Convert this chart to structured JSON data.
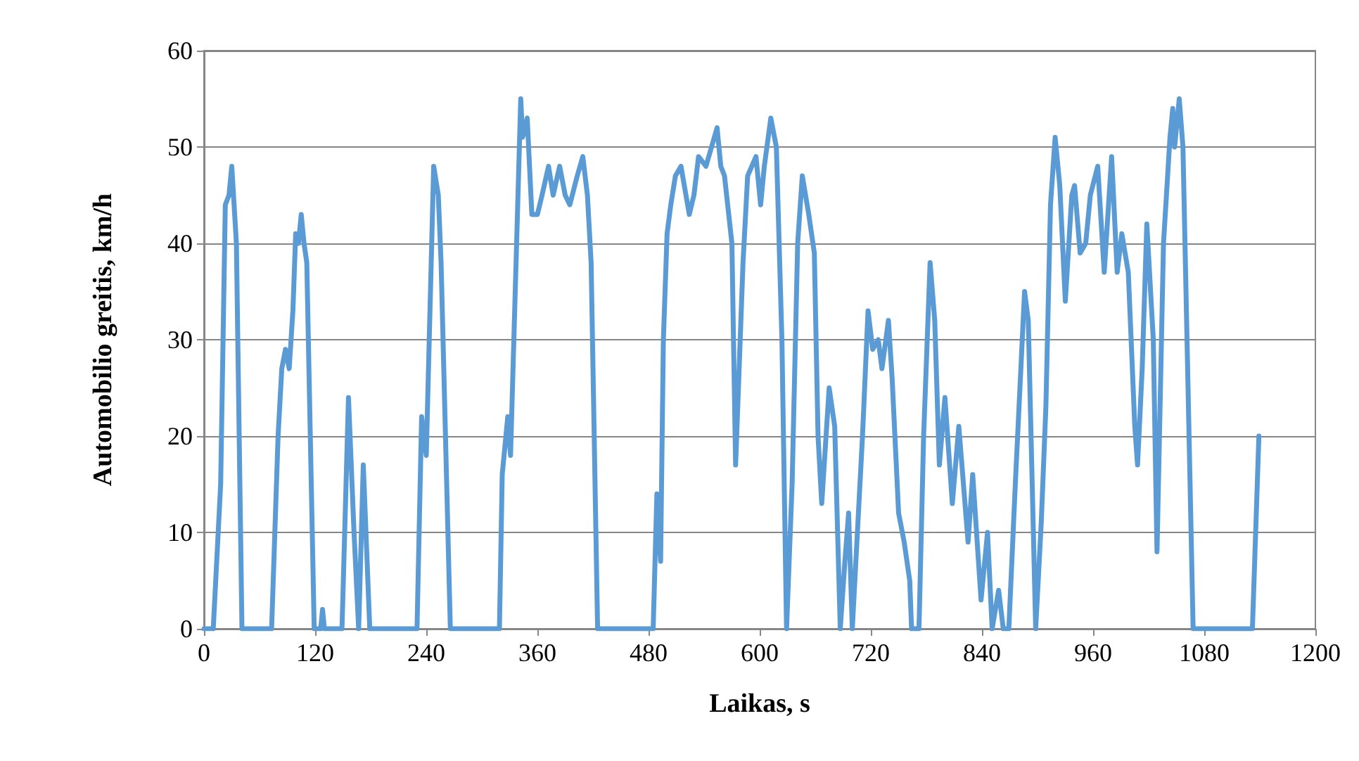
{
  "chart_data": {
    "type": "line",
    "xlabel": "Laikas, s",
    "ylabel": "Automobilio greitis, km/h",
    "x": [
      0,
      10,
      18,
      23,
      27,
      30,
      35,
      41,
      73,
      80,
      84,
      88,
      92,
      96,
      99,
      102,
      105,
      108,
      111,
      119,
      126,
      128,
      130,
      149,
      156,
      162,
      167,
      172,
      179,
      230,
      235,
      240,
      248,
      253,
      256,
      266,
      319,
      322,
      328,
      331,
      342,
      344,
      349,
      354,
      360,
      365,
      372,
      377,
      384,
      390,
      395,
      403,
      409,
      414,
      418,
      425,
      485,
      489,
      493,
      496,
      500,
      504,
      509,
      515,
      524,
      529,
      534,
      542,
      554,
      558,
      562,
      570,
      574,
      582,
      587,
      596,
      601,
      605,
      612,
      618,
      624,
      629,
      635,
      641,
      646,
      653,
      659,
      663,
      667,
      675,
      681,
      687,
      692,
      696,
      700,
      711,
      717,
      722,
      728,
      732,
      739,
      743,
      750,
      756,
      762,
      764,
      772,
      777,
      784,
      789,
      794,
      800,
      808,
      815,
      825,
      830,
      839,
      846,
      851,
      858,
      863,
      869,
      876,
      886,
      890,
      898,
      904,
      909,
      914,
      919,
      924,
      930,
      937,
      940,
      946,
      952,
      957,
      965,
      972,
      980,
      986,
      991,
      998,
      1005,
      1008,
      1013,
      1018,
      1025,
      1029,
      1036,
      1043,
      1046,
      1048,
      1053,
      1057,
      1068,
      1132,
      1139
    ],
    "values": [
      0,
      0,
      15,
      44,
      45,
      48,
      40,
      0,
      0,
      20,
      27,
      29,
      27,
      33,
      41,
      40,
      43,
      40,
      38,
      0,
      0,
      2,
      0,
      0,
      24,
      10,
      0,
      17,
      0,
      0,
      22,
      18,
      48,
      45,
      38,
      0,
      0,
      16,
      22,
      18,
      55,
      51,
      53,
      43,
      43,
      45,
      48,
      45,
      48,
      45,
      44,
      47,
      49,
      45,
      38,
      0,
      0,
      14,
      7,
      30,
      41,
      44,
      47,
      48,
      43,
      45,
      49,
      48,
      52,
      48,
      47,
      40,
      17,
      38,
      47,
      49,
      44,
      48,
      53,
      50,
      30,
      0,
      15,
      40,
      47,
      43,
      39,
      20,
      13,
      25,
      21,
      0,
      7,
      12,
      0,
      20,
      33,
      29,
      30,
      27,
      32,
      26,
      12,
      9,
      5,
      0,
      0,
      20,
      38,
      32,
      17,
      24,
      13,
      21,
      9,
      16,
      3,
      10,
      0,
      4,
      0,
      0,
      15,
      35,
      32,
      0,
      11,
      23,
      44,
      51,
      46,
      34,
      45,
      46,
      39,
      40,
      45,
      48,
      37,
      49,
      37,
      41,
      37,
      21,
      17,
      27,
      42,
      30,
      8,
      40,
      51,
      54,
      50,
      55,
      50,
      0,
      0,
      20
    ],
    "color": "#5b9bd5",
    "xlim": [
      0,
      1200
    ],
    "xticks": [
      0,
      120,
      240,
      360,
      480,
      600,
      720,
      840,
      960,
      1080,
      1200
    ],
    "ylim": [
      0,
      60
    ],
    "yticks": [
      0,
      10,
      20,
      30,
      40,
      50,
      60
    ],
    "grid": "y",
    "marker": "none",
    "line_style": "solid"
  }
}
